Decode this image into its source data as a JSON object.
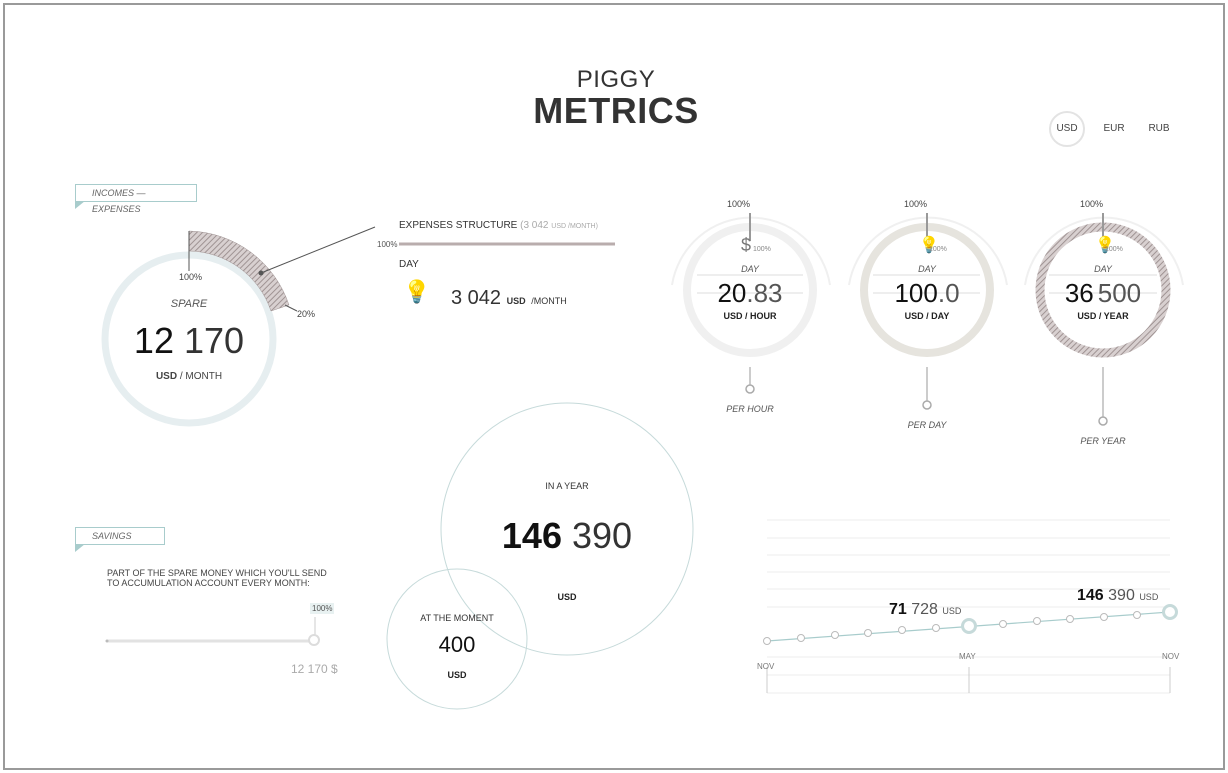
{
  "logo": {
    "line1": "PIGGY",
    "line2": "METRICS"
  },
  "currency": {
    "options": [
      "USD",
      "EUR",
      "RUB"
    ],
    "selected": "USD"
  },
  "incomes": {
    "tag": "INCOMES — EXPENSES",
    "spare_label": "SPARE",
    "spare_value_main": "12",
    "spare_value_rest": "170",
    "unit_currency": "USD",
    "unit_period": "/ MONTH",
    "pct_top": "100%",
    "pct_side": "20%"
  },
  "expenses": {
    "title": "EXPENSES STRUCTURE",
    "subtitle_value": "(3 042",
    "subtitle_unit": "USD /MONTH)",
    "pct": "100%",
    "item_period": "DAY",
    "item_value": "3 042",
    "item_currency": "USD",
    "item_unit": "/MONTH"
  },
  "meters": [
    {
      "pct_top": "100%",
      "pct_mid": "100%",
      "period": "DAY",
      "value_main": "20",
      "value_rest": ".83",
      "unit": "USD / HOUR",
      "foot": "PER HOUR",
      "ring_color": "#eeeeee"
    },
    {
      "pct_top": "100%",
      "pct_mid": "100%",
      "period": "DAY",
      "value_main": "100",
      "value_rest": ".0",
      "unit": "USD / DAY",
      "foot": "PER DAY",
      "ring_color": "#e6e4de"
    },
    {
      "pct_top": "100%",
      "pct_mid": "100%",
      "period": "DAY",
      "value_main": "36",
      "value_rest": "500",
      "unit": "USD / YEAR",
      "foot": "PER YEAR",
      "ring_color": "#b9adad"
    }
  ],
  "savings": {
    "tag": "SAVINGS",
    "desc_line1": "PART OF THE SPARE MONEY WHICH YOU'LL SEND",
    "desc_line2": "TO ACCUMULATION ACCOUNT EVERY MONTH:",
    "slider_pct": "100%",
    "slider_value_fraction": 1.0,
    "amount": "12 170 $"
  },
  "bubbles": {
    "year_label": "IN A YEAR",
    "year_main": "146",
    "year_rest": "390",
    "year_unit": "USD",
    "now_label": "AT THE MOMENT",
    "now_value": "400",
    "now_unit": "USD"
  },
  "timeline": {
    "mid_main": "71",
    "mid_rest": "728",
    "mid_unit": "USD",
    "end_main": "146",
    "end_rest": "390",
    "end_unit": "USD",
    "labels": [
      "NOV",
      "MAY",
      "NOV"
    ]
  },
  "colors": {
    "accent": "#a8cccc",
    "ring": "#e6eef0",
    "hatch": "#b9adad"
  }
}
